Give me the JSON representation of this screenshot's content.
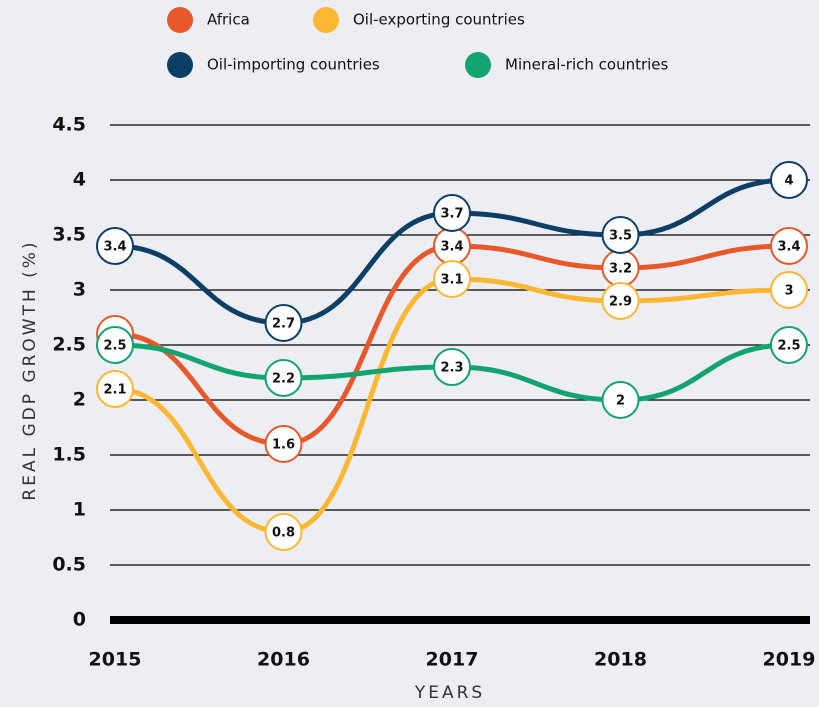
{
  "chart_data": {
    "type": "line",
    "categories": [
      "2015",
      "2016",
      "2017",
      "2018",
      "2019"
    ],
    "series": [
      {
        "name": "Africa",
        "color": "#e8582a",
        "values": [
          2.6,
          1.6,
          3.4,
          3.2,
          3.4
        ]
      },
      {
        "name": "Oil-exporting countries",
        "color": "#fbb632",
        "values": [
          2.1,
          0.8,
          3.1,
          2.9,
          3
        ]
      },
      {
        "name": "Oil-importing countries",
        "color": "#0d3f66",
        "values": [
          3.4,
          2.7,
          3.7,
          3.5,
          4
        ]
      },
      {
        "name": "Mineral-rich countries",
        "color": "#13a36e",
        "values": [
          2.5,
          2.2,
          2.3,
          2,
          2.5
        ]
      }
    ],
    "ylabel": "REAL GDP GROWTH (%)",
    "xlabel": "YEARS",
    "ylim": [
      0,
      4.5
    ],
    "yticks": [
      0,
      0.5,
      1,
      1.5,
      2,
      2.5,
      3,
      3.5,
      4,
      4.5
    ],
    "grid": true
  }
}
